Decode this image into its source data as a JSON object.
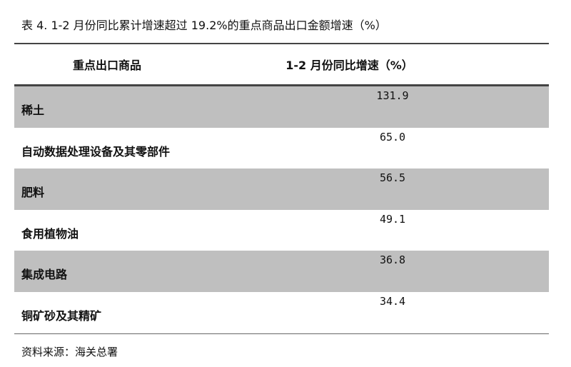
{
  "title": "表 4.  1-2 月份同比累计增速超过 19.2%的重点商品出口金额增速（%）",
  "headers": [
    "重点出口商品",
    "1-2 月份同比增速（%）"
  ],
  "rows": [
    {
      "name": "稀土",
      "value": "131.9"
    },
    {
      "name": "自动数据处理设备及其零部件",
      "value": "65.0"
    },
    {
      "name": "肥料",
      "value": "56.5"
    },
    {
      "name": "食用植物油",
      "value": "49.1"
    },
    {
      "name": "集成电路",
      "value": "36.8"
    },
    {
      "name": "铜矿砂及其精矿",
      "value": "34.4"
    }
  ],
  "source": "资料来源：海关总署",
  "colors": {
    "stripe": "#bfbfbf",
    "rule": "#444444"
  }
}
